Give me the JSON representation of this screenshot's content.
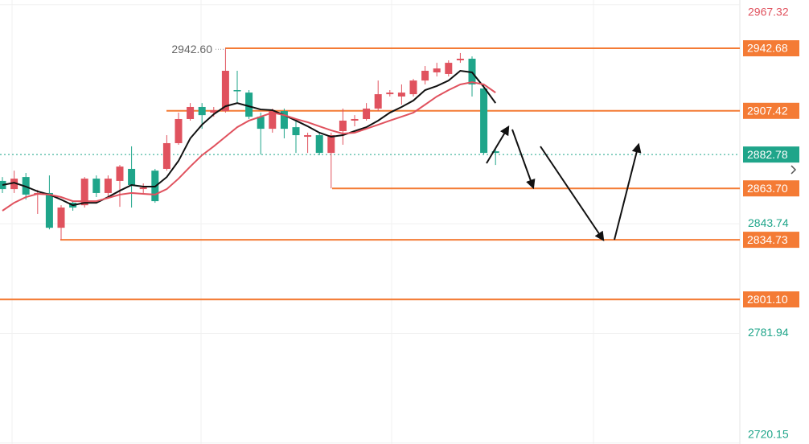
{
  "chart_data": {
    "type": "candlestick",
    "ylim": [
      2719.6,
      2969.9
    ],
    "yticks": [
      2967.32,
      2843.74,
      2781.94,
      2720.15
    ],
    "ytick_colors": [
      "#e0525e",
      "#1fa58a",
      "#1fa58a",
      "#1fa58a"
    ],
    "grid": true,
    "up_color": "#e0525e",
    "down_color": "#1fa58a",
    "open": [
      2867.9,
      2863.3,
      2870.1,
      2860.2,
      2861.1,
      2841.5,
      2855.6,
      2854.2,
      2869.2,
      2861.1,
      2867.9,
      2874.7,
      2863.3,
      2873.7,
      2874.7,
      2889.2,
      2902.8,
      2909.6,
      2906.4,
      2907.3,
      2919.1,
      2917.7,
      2904.1,
      2897.3,
      2907.3,
      2898.2,
      2892.8,
      2893.7,
      2883.7,
      2896.0,
      2901.9,
      2902.8,
      2908.7,
      2916.8,
      2915.5,
      2916.8,
      2924.5,
      2929.1,
      2928.2,
      2935.9,
      2936.8,
      2920.0,
      2884.6
    ],
    "high": [
      2870.1,
      2873.7,
      2872.4,
      2862.9,
      2871.0,
      2854.2,
      2856.5,
      2870.1,
      2871.0,
      2871.0,
      2876.9,
      2887.4,
      2866.5,
      2874.7,
      2893.7,
      2906.4,
      2911.8,
      2911.8,
      2909.6,
      2942.6,
      2930.0,
      2919.1,
      2906.4,
      2908.7,
      2908.7,
      2901.9,
      2895.1,
      2895.1,
      2895.1,
      2908.7,
      2905.0,
      2911.8,
      2924.5,
      2919.1,
      2922.3,
      2925.4,
      2932.7,
      2934.5,
      2935.9,
      2940.0,
      2938.1,
      2922.3,
      2886.0
    ],
    "low": [
      2861.1,
      2861.1,
      2857.4,
      2849.3,
      2840.6,
      2834.7,
      2851.1,
      2852.9,
      2858.8,
      2859.2,
      2853.3,
      2852.9,
      2861.1,
      2855.6,
      2873.7,
      2888.3,
      2901.9,
      2897.3,
      2904.1,
      2906.4,
      2911.8,
      2902.8,
      2882.8,
      2895.1,
      2891.9,
      2883.7,
      2883.7,
      2882.4,
      2863.7,
      2888.3,
      2898.7,
      2901.9,
      2907.3,
      2915.5,
      2910.9,
      2915.5,
      2922.3,
      2926.8,
      2926.8,
      2934.5,
      2915.5,
      2882.8,
      2876.9
    ],
    "close": [
      2863.3,
      2869.2,
      2860.2,
      2861.1,
      2841.5,
      2852.9,
      2852.9,
      2869.2,
      2861.1,
      2869.2,
      2876.0,
      2865.6,
      2864.2,
      2856.5,
      2889.2,
      2902.8,
      2909.6,
      2905.0,
      2907.8,
      2930.0,
      2918.7,
      2904.1,
      2897.3,
      2907.3,
      2897.3,
      2893.7,
      2893.7,
      2883.7,
      2893.7,
      2901.9,
      2902.8,
      2908.7,
      2916.8,
      2917.7,
      2917.7,
      2924.5,
      2930.0,
      2931.3,
      2934.5,
      2936.8,
      2922.3,
      2883.7,
      2883.7
    ],
    "series": [
      {
        "color": "#111111",
        "values": [
          2865.6,
          2866.9,
          2864.7,
          2862.0,
          2860.2,
          2857.4,
          2854.2,
          2855.6,
          2855.6,
          2858.8,
          2862.4,
          2865.6,
          2864.7,
          2864.7,
          2870.1,
          2879.2,
          2891.9,
          2899.6,
          2905.5,
          2910.0,
          2911.8,
          2910.0,
          2908.2,
          2907.8,
          2905.0,
          2901.9,
          2898.7,
          2895.1,
          2892.8,
          2893.7,
          2896.0,
          2898.2,
          2901.9,
          2906.4,
          2909.6,
          2913.2,
          2919.1,
          2921.4,
          2924.5,
          2930.0,
          2929.1,
          2920.9,
          2911.8
        ]
      },
      {
        "color": "#e0525e",
        "values": [
          2851.1,
          2855.6,
          2858.8,
          2860.6,
          2860.2,
          2858.8,
          2856.5,
          2856.5,
          2856.5,
          2858.3,
          2860.2,
          2861.1,
          2860.6,
          2860.2,
          2863.3,
          2869.2,
          2876.0,
          2882.4,
          2887.4,
          2892.8,
          2898.2,
          2901.9,
          2904.1,
          2906.4,
          2905.0,
          2902.8,
          2901.0,
          2898.7,
          2896.4,
          2894.6,
          2895.1,
          2897.3,
          2899.6,
          2901.9,
          2904.1,
          2906.4,
          2910.9,
          2915.5,
          2919.1,
          2922.3,
          2923.6,
          2922.3,
          2917.7
        ]
      }
    ],
    "levels": [
      {
        "value": 2942.68,
        "label": "2942.68"
      },
      {
        "value": 2907.42,
        "label": "2907.42"
      },
      {
        "value": 2863.7,
        "label": "2863.70"
      },
      {
        "value": 2834.73,
        "label": "2834.73"
      },
      {
        "value": 2801.1,
        "label": "2801.10"
      }
    ],
    "level_color": "#f47b35",
    "last_price": {
      "value": 2882.78,
      "label": "2882.78"
    },
    "high_marker": {
      "value": 2942.6,
      "label": "2942.60"
    }
  }
}
